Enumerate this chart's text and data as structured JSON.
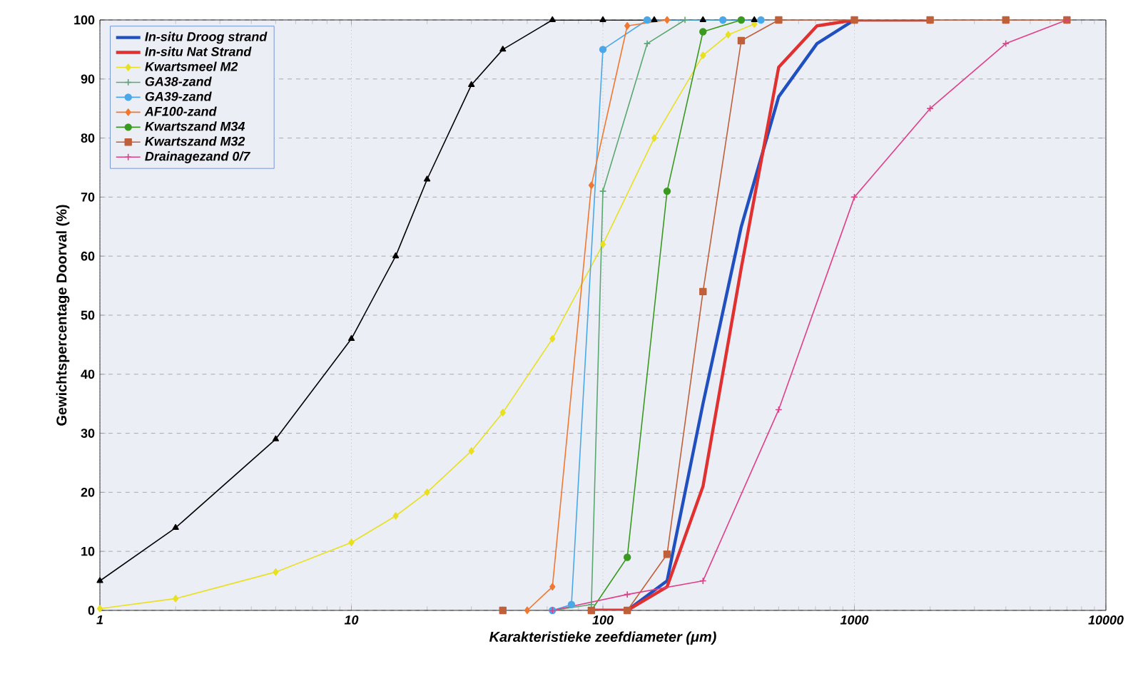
{
  "chart_data": {
    "type": "line",
    "xlabel": "Karakteristieke zeefdiameter (μm)",
    "ylabel": "Gewichtspercentage Doorval (%)",
    "log": "x",
    "grid": true,
    "legend": "top left",
    "xlim": [
      1,
      10000
    ],
    "xticks": [
      1,
      10,
      100,
      1000,
      10000
    ],
    "ylim": [
      0,
      100
    ],
    "yticks": [
      0,
      10,
      20,
      30,
      40,
      50,
      60,
      70,
      80,
      90,
      100
    ],
    "series": [
      {
        "name": "In-situ Droog strand",
        "color": "#2050c0",
        "marker": "none",
        "x": [
          90,
          125,
          180,
          250,
          355,
          500,
          710,
          1000
        ],
        "values": [
          0,
          0,
          5,
          35,
          65,
          87,
          96,
          100
        ]
      },
      {
        "name": "In-situ Nat Strand",
        "color": "#e03030",
        "marker": "none",
        "x": [
          90,
          125,
          180,
          250,
          355,
          500,
          710,
          1000,
          2000
        ],
        "values": [
          0,
          0,
          4,
          21,
          58,
          92,
          99,
          100,
          100
        ]
      },
      {
        "name": "Kwartsmeel M2",
        "color": "#e8e020",
        "marker": "diamond",
        "x": [
          1,
          2,
          5,
          10,
          15,
          20,
          30,
          40,
          63,
          100,
          160,
          250,
          315,
          400
        ],
        "values": [
          0.3,
          2,
          6.5,
          11.5,
          16,
          20,
          27,
          33.5,
          46,
          62,
          80,
          94,
          97.5,
          99.3
        ]
      },
      {
        "color": "#000000",
        "marker": "triangle",
        "x": [
          1,
          2,
          5,
          10,
          15,
          20,
          30,
          40,
          63,
          100,
          160,
          250,
          400
        ],
        "values": [
          5,
          14,
          29,
          46,
          60,
          73,
          89,
          95,
          100,
          100,
          100,
          100,
          100
        ]
      },
      {
        "name": "GA38-zand",
        "color": "#5aa870",
        "marker": "cross",
        "x": [
          63,
          90,
          100,
          150,
          212,
          300
        ],
        "values": [
          0,
          1,
          71,
          96,
          100,
          100
        ]
      },
      {
        "name": "GA39-zand",
        "color": "#4aa8e8",
        "marker": "circle",
        "x": [
          63,
          75,
          100,
          150,
          300,
          425
        ],
        "values": [
          0,
          1,
          95,
          100,
          100,
          100
        ]
      },
      {
        "name": "AF100-zand",
        "color": "#f07830",
        "marker": "diamond",
        "x": [
          50,
          63,
          90,
          125,
          180
        ],
        "values": [
          0,
          4,
          72,
          99,
          100
        ]
      },
      {
        "name": "Kwartszand M34",
        "color": "#3a9a20",
        "marker": "circle",
        "x": [
          90,
          125,
          180,
          250,
          355
        ],
        "values": [
          0,
          9,
          71,
          98,
          100
        ]
      },
      {
        "name": "Kwartszand M32",
        "color": "#c0603a",
        "marker": "square",
        "x": [
          40,
          90,
          125,
          180,
          250,
          355,
          500,
          1000,
          2000,
          4000,
          7000
        ],
        "values": [
          0,
          0,
          0,
          9.5,
          54,
          96.5,
          100,
          100,
          100,
          100,
          100
        ]
      },
      {
        "name": "Drainagezand 0/7",
        "color": "#e0408a",
        "marker": "cross",
        "x": [
          63,
          125,
          250,
          500,
          1000,
          2000,
          4000,
          7000
        ],
        "values": [
          0,
          2.7,
          5,
          34,
          70,
          85,
          96,
          100
        ]
      }
    ]
  }
}
